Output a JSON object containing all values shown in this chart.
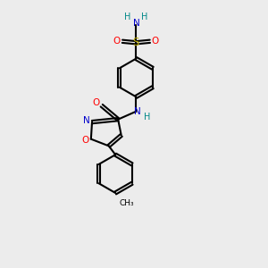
{
  "bg_color": "#ececec",
  "atom_colors": {
    "C": "#000000",
    "N": "#0000cc",
    "O": "#ff0000",
    "S": "#bbaa00",
    "H": "#008888"
  },
  "bond_color": "#000000",
  "bond_width": 1.5
}
